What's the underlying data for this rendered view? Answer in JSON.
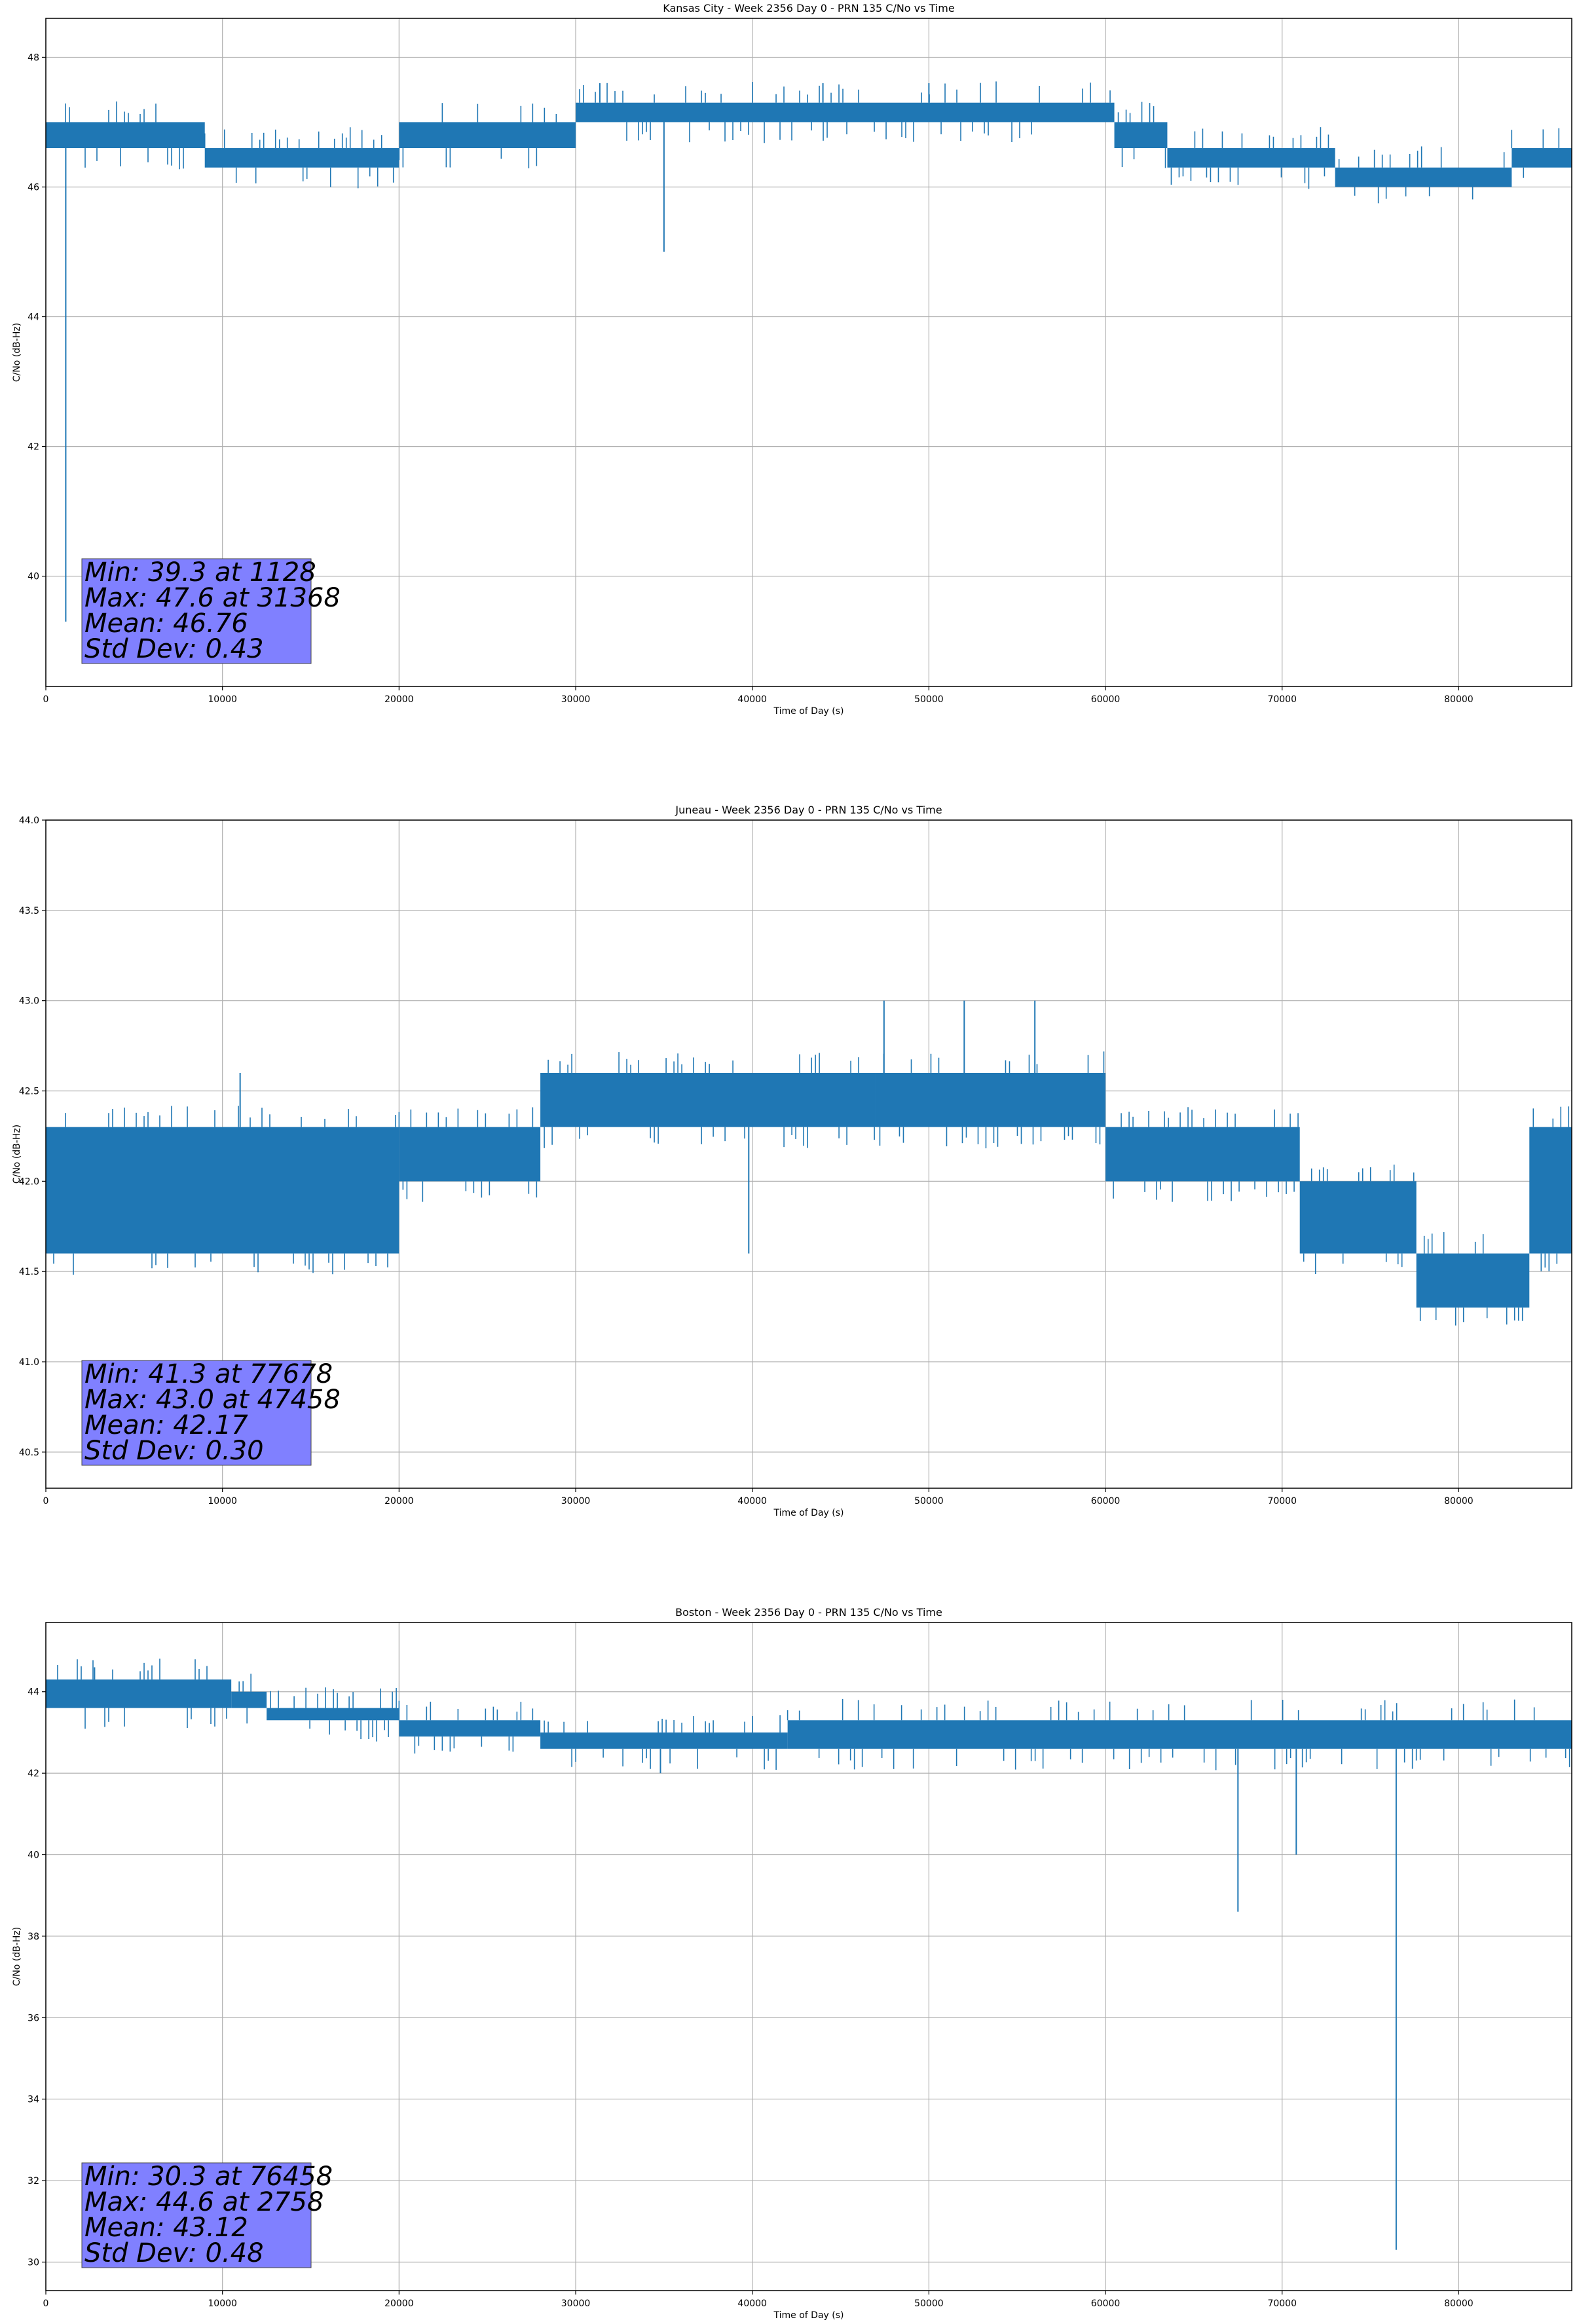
{
  "chart_data": [
    {
      "type": "line",
      "title": "Kansas City - Week 2356 Day 0 - PRN 135 C/No vs Time",
      "xlabel": "Time of Day (s)",
      "ylabel": "C/No (dB-Hz)",
      "xlim": [
        0,
        86400
      ],
      "ylim": [
        38.3,
        48.6
      ],
      "xticks": [
        0,
        10000,
        20000,
        30000,
        40000,
        50000,
        60000,
        70000,
        80000
      ],
      "yticks": [
        40,
        42,
        44,
        46,
        48
      ],
      "ytick_decimals": 0,
      "grid": true,
      "series_color": "#1f77b4",
      "stats_box_color": "#8080ff",
      "stats": [
        "Min: 39.3 at 1128",
        "Max: 47.6 at 31368",
        "Mean: 46.76",
        "Std Dev: 0.43"
      ],
      "band_segments": [
        {
          "x": [
            0,
            9000
          ],
          "lo": 46.6,
          "hi": 47.0
        },
        {
          "x": [
            9000,
            20000
          ],
          "lo": 46.3,
          "hi": 46.6
        },
        {
          "x": [
            20000,
            30000
          ],
          "lo": 46.6,
          "hi": 47.0
        },
        {
          "x": [
            30000,
            60500
          ],
          "lo": 47.0,
          "hi": 47.3
        },
        {
          "x": [
            60500,
            63500
          ],
          "lo": 46.6,
          "hi": 47.0
        },
        {
          "x": [
            63500,
            73000
          ],
          "lo": 46.3,
          "hi": 46.6
        },
        {
          "x": [
            73000,
            83000
          ],
          "lo": 46.0,
          "hi": 46.3
        },
        {
          "x": [
            83000,
            86400
          ],
          "lo": 46.3,
          "hi": 46.6
        }
      ],
      "spikes": [
        {
          "x": 1128,
          "y": 39.3
        },
        {
          "x": 35000,
          "y": 45.0
        },
        {
          "x": 31368,
          "y": 47.6
        },
        {
          "x": 44000,
          "y": 47.6
        },
        {
          "x": 50000,
          "y": 47.6
        }
      ]
    },
    {
      "type": "line",
      "title": "Juneau - Week 2356 Day 0 - PRN 135 C/No vs Time",
      "xlabel": "Time of Day (s)",
      "ylabel": "C/No (dB-Hz)",
      "xlim": [
        0,
        86400
      ],
      "ylim": [
        40.3,
        44.0
      ],
      "xticks": [
        0,
        10000,
        20000,
        30000,
        40000,
        50000,
        60000,
        70000,
        80000
      ],
      "yticks": [
        40.5,
        41.0,
        41.5,
        42.0,
        42.5,
        43.0,
        43.5,
        44.0
      ],
      "ytick_decimals": 1,
      "grid": true,
      "series_color": "#1f77b4",
      "stats_box_color": "#8080ff",
      "stats": [
        "Min: 41.3 at 77678",
        "Max: 43.0 at 47458",
        "Mean: 42.17",
        "Std Dev: 0.30"
      ],
      "band_segments": [
        {
          "x": [
            0,
            20000
          ],
          "lo": 41.6,
          "hi": 42.3
        },
        {
          "x": [
            20000,
            28000
          ],
          "lo": 42.0,
          "hi": 42.3
        },
        {
          "x": [
            28000,
            47000
          ],
          "lo": 42.3,
          "hi": 42.6
        },
        {
          "x": [
            47000,
            60000
          ],
          "lo": 42.3,
          "hi": 42.6
        },
        {
          "x": [
            60000,
            71000
          ],
          "lo": 42.0,
          "hi": 42.3
        },
        {
          "x": [
            71000,
            77600
          ],
          "lo": 41.6,
          "hi": 42.0
        },
        {
          "x": [
            77600,
            84000
          ],
          "lo": 41.3,
          "hi": 41.6
        },
        {
          "x": [
            84000,
            86400
          ],
          "lo": 41.6,
          "hi": 42.3
        }
      ],
      "spikes": [
        {
          "x": 11000,
          "y": 42.6
        },
        {
          "x": 47458,
          "y": 43.0
        },
        {
          "x": 52000,
          "y": 43.0
        },
        {
          "x": 56000,
          "y": 43.0
        },
        {
          "x": 39800,
          "y": 41.6
        }
      ]
    },
    {
      "type": "line",
      "title": "Boston - Week 2356 Day 0 - PRN 135 C/No vs Time",
      "xlabel": "Time of Day (s)",
      "ylabel": "C/No (dB-Hz)",
      "xlim": [
        0,
        86400
      ],
      "ylim": [
        29.3,
        45.7
      ],
      "xticks": [
        0,
        10000,
        20000,
        30000,
        40000,
        50000,
        60000,
        70000,
        80000
      ],
      "yticks": [
        30,
        32,
        34,
        36,
        38,
        40,
        42,
        44
      ],
      "ytick_decimals": 0,
      "grid": true,
      "series_color": "#1f77b4",
      "stats_box_color": "#8080ff",
      "stats": [
        "Min: 30.3 at 76458",
        "Max: 44.6 at 2758",
        "Mean: 43.12",
        "Std Dev: 0.48"
      ],
      "band_segments": [
        {
          "x": [
            0,
            10500
          ],
          "lo": 43.6,
          "hi": 44.3
        },
        {
          "x": [
            10500,
            12500
          ],
          "lo": 43.6,
          "hi": 44.0
        },
        {
          "x": [
            12500,
            20000
          ],
          "lo": 43.3,
          "hi": 43.6
        },
        {
          "x": [
            20000,
            28000
          ],
          "lo": 42.9,
          "hi": 43.3
        },
        {
          "x": [
            28000,
            42000
          ],
          "lo": 42.6,
          "hi": 43.0
        },
        {
          "x": [
            42000,
            86400
          ],
          "lo": 42.6,
          "hi": 43.3
        }
      ],
      "spikes": [
        {
          "x": 2758,
          "y": 44.6
        },
        {
          "x": 34800,
          "y": 42.0
        },
        {
          "x": 67500,
          "y": 38.6
        },
        {
          "x": 70800,
          "y": 40.0
        },
        {
          "x": 76458,
          "y": 30.3
        }
      ]
    }
  ]
}
